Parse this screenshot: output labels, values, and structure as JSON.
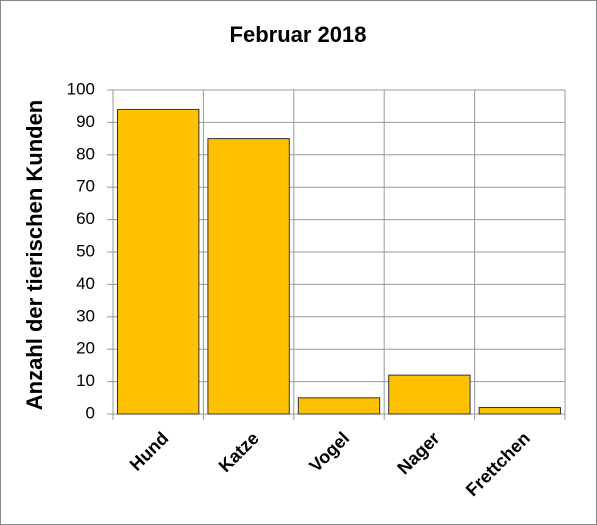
{
  "chart_data": {
    "type": "bar",
    "title": "Februar 2018",
    "y_label": "Anzahl der tierischen Kunden",
    "categories": [
      "Hund",
      "Katze",
      "Vogel",
      "Nager",
      "Frettchen"
    ],
    "values": [
      94,
      85,
      5,
      12,
      2
    ],
    "color": "#ffc000",
    "ylim": [
      0,
      100
    ],
    "yticks": [
      0,
      10,
      20,
      30,
      40,
      50,
      60,
      70,
      80,
      90,
      100
    ],
    "grid": true
  }
}
